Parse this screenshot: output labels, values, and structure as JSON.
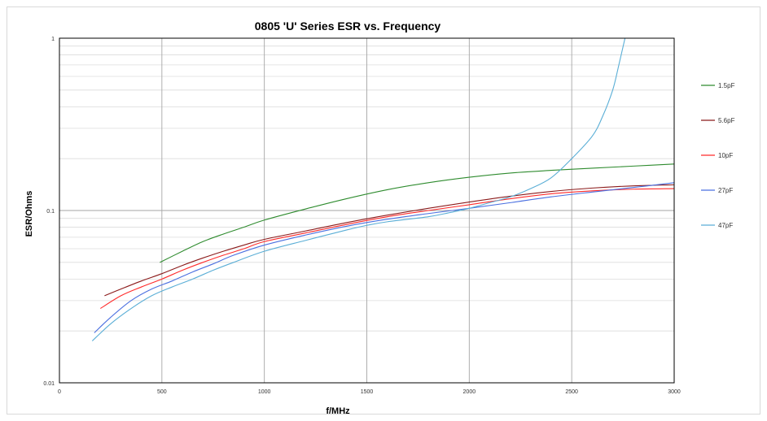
{
  "chart_data": {
    "type": "line",
    "title": "0805 'U' Series ESR vs. Frequency",
    "xlabel": "f/MHz",
    "ylabel": "ESR/Ohms",
    "xlim": [
      0,
      3000
    ],
    "ylim": [
      0.01,
      1
    ],
    "y_scale": "log",
    "x_ticks": [
      0,
      500,
      1000,
      1500,
      2000,
      2500,
      3000
    ],
    "y_ticks": [
      0.01,
      0.1,
      1
    ],
    "y_tick_labels": [
      "0.01",
      "0.1",
      "1"
    ],
    "grid": true,
    "legend_position": "right",
    "series": [
      {
        "name": "1.5pF",
        "color": "#2e8b2e",
        "x": [
          490,
          600,
          700,
          800,
          900,
          1000,
          1200,
          1400,
          1600,
          1800,
          2000,
          2200,
          2400,
          2600,
          2800,
          3000
        ],
        "y": [
          0.05,
          0.058,
          0.066,
          0.073,
          0.08,
          0.088,
          0.102,
          0.117,
          0.132,
          0.145,
          0.156,
          0.165,
          0.171,
          0.176,
          0.181,
          0.186
        ]
      },
      {
        "name": "5.6pF",
        "color": "#8b1a1a",
        "x": [
          220,
          300,
          400,
          500,
          600,
          700,
          800,
          900,
          1000,
          1200,
          1400,
          1600,
          1800,
          2000,
          2200,
          2400,
          2600,
          2800,
          3000
        ],
        "y": [
          0.032,
          0.035,
          0.039,
          0.043,
          0.048,
          0.053,
          0.058,
          0.063,
          0.068,
          0.076,
          0.085,
          0.094,
          0.103,
          0.112,
          0.121,
          0.129,
          0.135,
          0.139,
          0.141
        ]
      },
      {
        "name": "10pF",
        "color": "#ff2a2a",
        "x": [
          200,
          300,
          400,
          500,
          600,
          700,
          800,
          900,
          1000,
          1200,
          1400,
          1600,
          1800,
          2000,
          2200,
          2400,
          2600,
          2800,
          3000
        ],
        "y": [
          0.027,
          0.032,
          0.036,
          0.04,
          0.045,
          0.05,
          0.055,
          0.06,
          0.066,
          0.074,
          0.083,
          0.092,
          0.1,
          0.108,
          0.117,
          0.125,
          0.13,
          0.133,
          0.134
        ]
      },
      {
        "name": "27pF",
        "color": "#4a6fe0",
        "x": [
          170,
          250,
          350,
          450,
          550,
          650,
          750,
          850,
          1000,
          1200,
          1400,
          1600,
          1800,
          2000,
          2200,
          2400,
          2600,
          2800,
          3000
        ],
        "y": [
          0.0195,
          0.024,
          0.03,
          0.035,
          0.039,
          0.044,
          0.049,
          0.055,
          0.063,
          0.072,
          0.081,
          0.089,
          0.096,
          0.103,
          0.111,
          0.12,
          0.128,
          0.136,
          0.145
        ]
      },
      {
        "name": "47pF",
        "color": "#5aaed6",
        "x": [
          160,
          250,
          350,
          450,
          550,
          650,
          750,
          850,
          1000,
          1200,
          1400,
          1500,
          1600,
          1800,
          1900,
          2000,
          2100,
          2200,
          2300,
          2400,
          2500,
          2600,
          2650,
          2700,
          2730,
          2760
        ],
        "y": [
          0.0175,
          0.022,
          0.027,
          0.032,
          0.036,
          0.04,
          0.045,
          0.05,
          0.058,
          0.067,
          0.077,
          0.082,
          0.086,
          0.092,
          0.097,
          0.103,
          0.111,
          0.12,
          0.134,
          0.155,
          0.2,
          0.27,
          0.35,
          0.5,
          0.7,
          1.0
        ]
      }
    ]
  }
}
